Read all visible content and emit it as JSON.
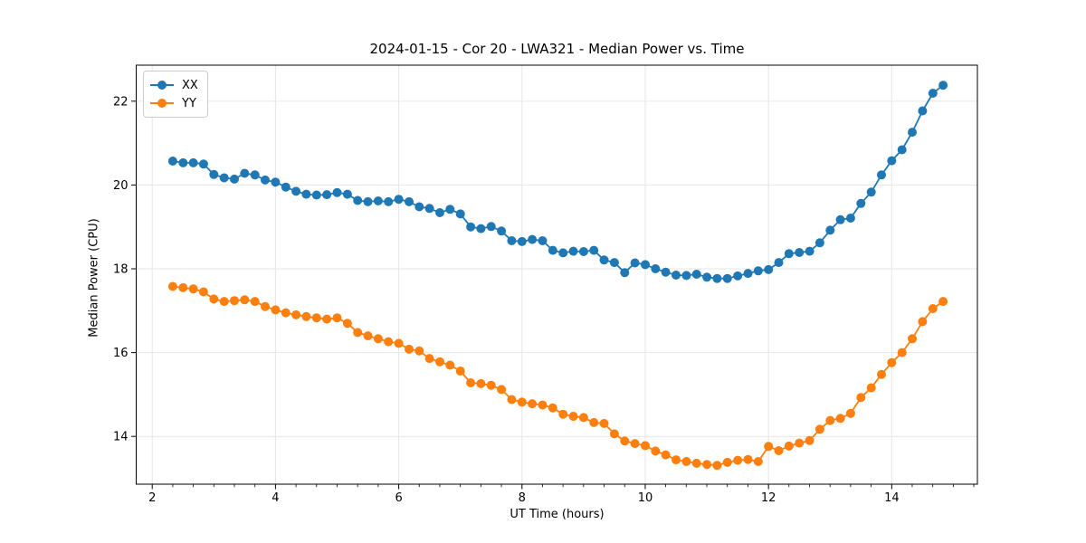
{
  "chart_data": {
    "type": "line",
    "title": "2024-01-15 - Cor 20 - LWA321 - Median Power vs. Time",
    "xlabel": "UT Time (hours)",
    "ylabel": "Median Power (CPU)",
    "xlim": [
      1.74,
      15.39
    ],
    "ylim": [
      12.86,
      22.86
    ],
    "x_ticks": [
      2,
      4,
      6,
      8,
      10,
      12,
      14
    ],
    "y_ticks": [
      14,
      16,
      18,
      20,
      22
    ],
    "x_minor_interval": 0.3333,
    "grid": true,
    "grid_color": "#e6e6e6",
    "legend_position": "upper-left",
    "marker": "circle",
    "marker_radius": 5,
    "line_width": 1.8,
    "x": [
      2.333,
      2.5,
      2.667,
      2.833,
      3.0,
      3.167,
      3.333,
      3.5,
      3.667,
      3.833,
      4.0,
      4.167,
      4.333,
      4.5,
      4.667,
      4.833,
      5.0,
      5.167,
      5.333,
      5.5,
      5.667,
      5.833,
      6.0,
      6.167,
      6.333,
      6.5,
      6.667,
      6.833,
      7.0,
      7.167,
      7.333,
      7.5,
      7.667,
      7.833,
      8.0,
      8.167,
      8.333,
      8.5,
      8.667,
      8.833,
      9.0,
      9.167,
      9.333,
      9.5,
      9.667,
      9.833,
      10.0,
      10.167,
      10.333,
      10.5,
      10.667,
      10.833,
      11.0,
      11.167,
      11.333,
      11.5,
      11.667,
      11.833,
      12.0,
      12.167,
      12.333,
      12.5,
      12.667,
      12.833,
      13.0,
      13.167,
      13.333,
      13.5,
      13.667,
      13.833,
      14.0,
      14.167,
      14.333,
      14.5,
      14.667,
      14.833
    ],
    "series": [
      {
        "name": "XX",
        "color": "#1f77b4",
        "values": [
          20.57,
          20.53,
          20.53,
          20.5,
          20.25,
          20.17,
          20.14,
          20.28,
          20.24,
          20.12,
          20.07,
          19.95,
          19.85,
          19.78,
          19.76,
          19.77,
          19.82,
          19.78,
          19.63,
          19.6,
          19.62,
          19.6,
          19.66,
          19.6,
          19.48,
          19.44,
          19.34,
          19.42,
          19.31,
          19.0,
          18.96,
          19.01,
          18.9,
          18.67,
          18.65,
          18.7,
          18.67,
          18.44,
          18.38,
          18.42,
          18.41,
          18.44,
          18.21,
          18.15,
          17.91,
          18.14,
          18.1,
          18.0,
          17.92,
          17.85,
          17.84,
          17.87,
          17.8,
          17.77,
          17.77,
          17.83,
          17.89,
          17.95,
          17.98,
          18.15,
          18.36,
          18.39,
          18.42,
          18.62,
          18.92,
          19.17,
          19.21,
          19.56,
          19.83,
          20.24,
          20.58,
          20.84,
          21.26,
          21.77,
          22.19,
          22.38
        ]
      },
      {
        "name": "YY",
        "color": "#ff7f0e",
        "values": [
          17.58,
          17.55,
          17.52,
          17.45,
          17.28,
          17.22,
          17.24,
          17.26,
          17.22,
          17.1,
          17.02,
          16.95,
          16.9,
          16.86,
          16.83,
          16.8,
          16.83,
          16.7,
          16.48,
          16.4,
          16.33,
          16.26,
          16.22,
          16.08,
          16.04,
          15.86,
          15.78,
          15.7,
          15.56,
          15.28,
          15.26,
          15.22,
          15.12,
          14.88,
          14.82,
          14.78,
          14.75,
          14.68,
          14.53,
          14.48,
          14.45,
          14.33,
          14.31,
          14.06,
          13.89,
          13.83,
          13.78,
          13.65,
          13.56,
          13.44,
          13.4,
          13.36,
          13.33,
          13.31,
          13.38,
          13.43,
          13.45,
          13.4,
          13.76,
          13.66,
          13.77,
          13.84,
          13.9,
          14.17,
          14.38,
          14.43,
          14.55,
          14.93,
          15.16,
          15.48,
          15.76,
          16.0,
          16.33,
          16.74,
          17.05,
          17.22
        ]
      }
    ]
  }
}
